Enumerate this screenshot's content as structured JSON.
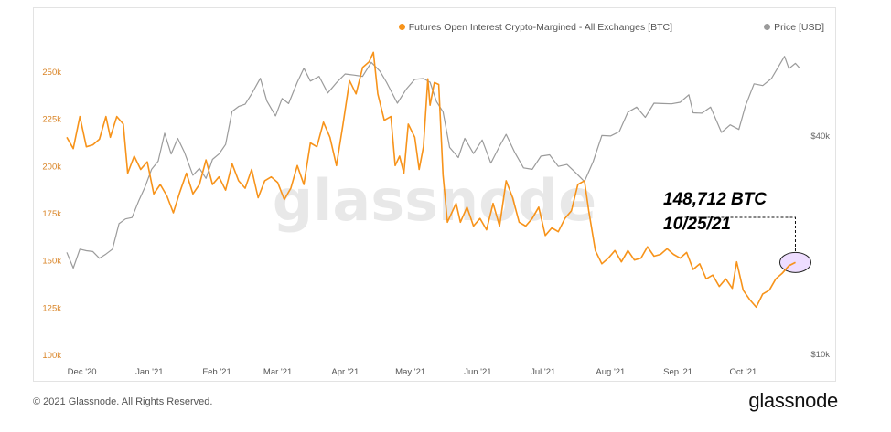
{
  "chart_data": {
    "type": "line",
    "title": "",
    "watermark": "glassnode",
    "x_ticks": [
      "Dec '20",
      "Jan '21",
      "Feb '21",
      "Mar '21",
      "Apr '21",
      "May '21",
      "Jun '21",
      "Jul '21",
      "Aug '21",
      "Sep '21",
      "Oct '21"
    ],
    "xlim": [
      "2020-11-24",
      "2021-10-29"
    ],
    "y_left": {
      "ticks": [
        "100k",
        "125k",
        "150k",
        "175k",
        "200k",
        "225k",
        "250k"
      ],
      "ylim": [
        100000,
        265000
      ]
    },
    "y_right": {
      "ticks": [
        "$10k",
        "$40k"
      ],
      "scale": "log"
    },
    "grid": false,
    "legend_position": "top-right",
    "series": [
      {
        "name": "Futures Open Interest Crypto-Margined - All Exchanges [BTC]",
        "color": "#f7931a",
        "axis": "left",
        "points": [
          [
            "2020-11-24",
            215000
          ],
          [
            "2020-11-27",
            209000
          ],
          [
            "2020-11-30",
            226000
          ],
          [
            "2020-12-03",
            210000
          ],
          [
            "2020-12-06",
            211000
          ],
          [
            "2020-12-09",
            214000
          ],
          [
            "2020-12-12",
            226000
          ],
          [
            "2020-12-14",
            215000
          ],
          [
            "2020-12-17",
            226000
          ],
          [
            "2020-12-20",
            222000
          ],
          [
            "2020-12-22",
            196000
          ],
          [
            "2020-12-25",
            205000
          ],
          [
            "2020-12-28",
            198000
          ],
          [
            "2020-12-31",
            202000
          ],
          [
            "2021-01-03",
            185000
          ],
          [
            "2021-01-06",
            190000
          ],
          [
            "2021-01-09",
            184000
          ],
          [
            "2021-01-12",
            175000
          ],
          [
            "2021-01-15",
            186000
          ],
          [
            "2021-01-18",
            196000
          ],
          [
            "2021-01-21",
            185000
          ],
          [
            "2021-01-24",
            190000
          ],
          [
            "2021-01-27",
            203000
          ],
          [
            "2021-01-30",
            190000
          ],
          [
            "2021-02-02",
            194000
          ],
          [
            "2021-02-05",
            187000
          ],
          [
            "2021-02-08",
            201000
          ],
          [
            "2021-02-11",
            192000
          ],
          [
            "2021-02-14",
            188000
          ],
          [
            "2021-02-17",
            198000
          ],
          [
            "2021-02-20",
            183000
          ],
          [
            "2021-02-23",
            192000
          ],
          [
            "2021-02-26",
            194000
          ],
          [
            "2021-03-01",
            191000
          ],
          [
            "2021-03-04",
            182000
          ],
          [
            "2021-03-07",
            188000
          ],
          [
            "2021-03-10",
            200000
          ],
          [
            "2021-03-13",
            190000
          ],
          [
            "2021-03-16",
            212000
          ],
          [
            "2021-03-19",
            210000
          ],
          [
            "2021-03-22",
            223000
          ],
          [
            "2021-03-25",
            215000
          ],
          [
            "2021-03-28",
            200000
          ],
          [
            "2021-03-31",
            222000
          ],
          [
            "2021-04-03",
            245000
          ],
          [
            "2021-04-06",
            238000
          ],
          [
            "2021-04-09",
            252000
          ],
          [
            "2021-04-12",
            255000
          ],
          [
            "2021-04-14",
            260000
          ],
          [
            "2021-04-16",
            238000
          ],
          [
            "2021-04-19",
            224000
          ],
          [
            "2021-04-22",
            226000
          ],
          [
            "2021-04-24",
            200000
          ],
          [
            "2021-04-26",
            205000
          ],
          [
            "2021-04-28",
            196000
          ],
          [
            "2021-04-30",
            222000
          ],
          [
            "2021-05-03",
            215000
          ],
          [
            "2021-05-05",
            198000
          ],
          [
            "2021-05-07",
            210000
          ],
          [
            "2021-05-09",
            246000
          ],
          [
            "2021-05-10",
            232000
          ],
          [
            "2021-05-12",
            244000
          ],
          [
            "2021-05-14",
            243000
          ],
          [
            "2021-05-16",
            195000
          ],
          [
            "2021-05-18",
            170000
          ],
          [
            "2021-05-20",
            175000
          ],
          [
            "2021-05-22",
            180000
          ],
          [
            "2021-05-24",
            170000
          ],
          [
            "2021-05-27",
            178000
          ],
          [
            "2021-05-30",
            168000
          ],
          [
            "2021-06-02",
            172000
          ],
          [
            "2021-06-05",
            166000
          ],
          [
            "2021-06-08",
            180000
          ],
          [
            "2021-06-11",
            168000
          ],
          [
            "2021-06-14",
            192000
          ],
          [
            "2021-06-17",
            183000
          ],
          [
            "2021-06-20",
            170000
          ],
          [
            "2021-06-23",
            168000
          ],
          [
            "2021-06-26",
            172000
          ],
          [
            "2021-06-29",
            178000
          ],
          [
            "2021-07-02",
            163000
          ],
          [
            "2021-07-05",
            167000
          ],
          [
            "2021-07-08",
            165000
          ],
          [
            "2021-07-11",
            172000
          ],
          [
            "2021-07-14",
            176000
          ],
          [
            "2021-07-17",
            190000
          ],
          [
            "2021-07-20",
            192000
          ],
          [
            "2021-07-22",
            176000
          ],
          [
            "2021-07-25",
            155000
          ],
          [
            "2021-07-28",
            148000
          ],
          [
            "2021-07-31",
            151000
          ],
          [
            "2021-08-03",
            155000
          ],
          [
            "2021-08-06",
            149000
          ],
          [
            "2021-08-09",
            155000
          ],
          [
            "2021-08-12",
            150000
          ],
          [
            "2021-08-15",
            151000
          ],
          [
            "2021-08-18",
            157000
          ],
          [
            "2021-08-21",
            152000
          ],
          [
            "2021-08-24",
            153000
          ],
          [
            "2021-08-27",
            156000
          ],
          [
            "2021-08-30",
            153000
          ],
          [
            "2021-09-02",
            151000
          ],
          [
            "2021-09-05",
            154000
          ],
          [
            "2021-09-08",
            145000
          ],
          [
            "2021-09-11",
            148000
          ],
          [
            "2021-09-14",
            140000
          ],
          [
            "2021-09-17",
            142000
          ],
          [
            "2021-09-20",
            136000
          ],
          [
            "2021-09-23",
            140000
          ],
          [
            "2021-09-26",
            135000
          ],
          [
            "2021-09-28",
            149000
          ],
          [
            "2021-10-01",
            134000
          ],
          [
            "2021-10-04",
            129000
          ],
          [
            "2021-10-07",
            125000
          ],
          [
            "2021-10-10",
            132000
          ],
          [
            "2021-10-13",
            134000
          ],
          [
            "2021-10-16",
            140000
          ],
          [
            "2021-10-19",
            143000
          ],
          [
            "2021-10-22",
            147000
          ],
          [
            "2021-10-25",
            148712
          ]
        ]
      },
      {
        "name": "Price [USD]",
        "color": "#9b9b9b",
        "axis": "right",
        "points": [
          [
            "2020-11-24",
            19000
          ],
          [
            "2020-11-27",
            17200
          ],
          [
            "2020-11-30",
            19400
          ],
          [
            "2020-12-03",
            19200
          ],
          [
            "2020-12-06",
            19100
          ],
          [
            "2020-12-09",
            18300
          ],
          [
            "2020-12-12",
            18800
          ],
          [
            "2020-12-15",
            19400
          ],
          [
            "2020-12-18",
            22800
          ],
          [
            "2020-12-21",
            23500
          ],
          [
            "2020-12-24",
            23700
          ],
          [
            "2020-12-27",
            26300
          ],
          [
            "2020-12-30",
            28800
          ],
          [
            "2021-01-02",
            32200
          ],
          [
            "2021-01-05",
            33900
          ],
          [
            "2021-01-08",
            40500
          ],
          [
            "2021-01-11",
            35500
          ],
          [
            "2021-01-14",
            39200
          ],
          [
            "2021-01-17",
            36000
          ],
          [
            "2021-01-21",
            31000
          ],
          [
            "2021-01-24",
            32400
          ],
          [
            "2021-01-27",
            30400
          ],
          [
            "2021-01-30",
            34300
          ],
          [
            "2021-02-02",
            35500
          ],
          [
            "2021-02-05",
            37700
          ],
          [
            "2021-02-08",
            46500
          ],
          [
            "2021-02-11",
            48000
          ],
          [
            "2021-02-14",
            48700
          ],
          [
            "2021-02-17",
            52000
          ],
          [
            "2021-02-21",
            57400
          ],
          [
            "2021-02-24",
            49700
          ],
          [
            "2021-02-28",
            45200
          ],
          [
            "2021-03-03",
            50500
          ],
          [
            "2021-03-06",
            48900
          ],
          [
            "2021-03-10",
            56000
          ],
          [
            "2021-03-13",
            61200
          ],
          [
            "2021-03-16",
            56400
          ],
          [
            "2021-03-20",
            58100
          ],
          [
            "2021-03-24",
            52300
          ],
          [
            "2021-03-28",
            55800
          ],
          [
            "2021-04-01",
            59000
          ],
          [
            "2021-04-05",
            58600
          ],
          [
            "2021-04-09",
            58100
          ],
          [
            "2021-04-13",
            63500
          ],
          [
            "2021-04-17",
            60000
          ],
          [
            "2021-04-20",
            56000
          ],
          [
            "2021-04-25",
            49000
          ],
          [
            "2021-04-29",
            53500
          ],
          [
            "2021-05-03",
            57000
          ],
          [
            "2021-05-07",
            57300
          ],
          [
            "2021-05-10",
            56000
          ],
          [
            "2021-05-13",
            49500
          ],
          [
            "2021-05-16",
            46400
          ],
          [
            "2021-05-19",
            37000
          ],
          [
            "2021-05-23",
            34700
          ],
          [
            "2021-05-26",
            39200
          ],
          [
            "2021-05-30",
            35600
          ],
          [
            "2021-06-03",
            38800
          ],
          [
            "2021-06-07",
            33500
          ],
          [
            "2021-06-11",
            37300
          ],
          [
            "2021-06-14",
            40200
          ],
          [
            "2021-06-18",
            35800
          ],
          [
            "2021-06-22",
            32500
          ],
          [
            "2021-06-26",
            32200
          ],
          [
            "2021-06-30",
            35000
          ],
          [
            "2021-07-04",
            35300
          ],
          [
            "2021-07-08",
            32800
          ],
          [
            "2021-07-12",
            33200
          ],
          [
            "2021-07-16",
            31500
          ],
          [
            "2021-07-20",
            29800
          ],
          [
            "2021-07-24",
            33800
          ],
          [
            "2021-07-28",
            39900
          ],
          [
            "2021-08-01",
            39800
          ],
          [
            "2021-08-05",
            40900
          ],
          [
            "2021-08-09",
            46300
          ],
          [
            "2021-08-13",
            47800
          ],
          [
            "2021-08-17",
            44800
          ],
          [
            "2021-08-21",
            49000
          ],
          [
            "2021-08-25",
            48900
          ],
          [
            "2021-08-29",
            48800
          ],
          [
            "2021-09-02",
            49300
          ],
          [
            "2021-09-06",
            51700
          ],
          [
            "2021-09-08",
            46100
          ],
          [
            "2021-09-12",
            46000
          ],
          [
            "2021-09-16",
            47800
          ],
          [
            "2021-09-21",
            40700
          ],
          [
            "2021-09-25",
            42700
          ],
          [
            "2021-09-29",
            41500
          ],
          [
            "2021-10-02",
            48100
          ],
          [
            "2021-10-06",
            55400
          ],
          [
            "2021-10-10",
            54800
          ],
          [
            "2021-10-14",
            57300
          ],
          [
            "2021-10-17",
            61500
          ],
          [
            "2021-10-20",
            66000
          ],
          [
            "2021-10-22",
            61000
          ],
          [
            "2021-10-25",
            63100
          ],
          [
            "2021-10-27",
            61200
          ]
        ]
      }
    ],
    "annotations": [
      {
        "text": "148,712 BTC",
        "date": "2021-10-25",
        "value": 148712
      },
      {
        "text": "10/25/21",
        "date": "2021-10-25",
        "value": 148712
      }
    ]
  },
  "footer": {
    "copyright": "© 2021 Glassnode. All Rights Reserved.",
    "brand": "glassnode"
  }
}
